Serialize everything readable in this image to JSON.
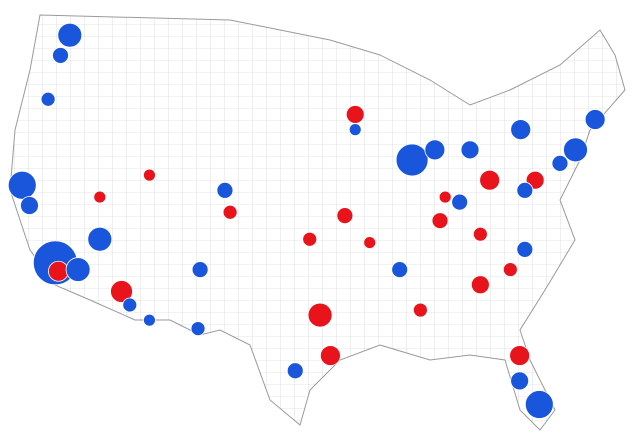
{
  "map": {
    "bubbles": [
      {
        "lon": -119.7,
        "lat": 48.1,
        "size": 12,
        "color": "#1a56db"
      },
      {
        "lon": -120.6,
        "lat": 46.9,
        "size": 8,
        "color": "#1a56db"
      },
      {
        "lon": -121.8,
        "lat": 44.3,
        "size": 7,
        "color": "#1a56db"
      },
      {
        "lon": -124.3,
        "lat": 39.2,
        "size": 14,
        "color": "#1a56db"
      },
      {
        "lon": -123.6,
        "lat": 38.0,
        "size": 9,
        "color": "#1a56db"
      },
      {
        "lon": -121.1,
        "lat": 34.6,
        "size": 22,
        "color": "#1a56db"
      },
      {
        "lon": -120.8,
        "lat": 34.1,
        "size": 10,
        "color": "#e8131b"
      },
      {
        "lon": -116.8,
        "lat": 36.0,
        "size": 12,
        "color": "#1a56db"
      },
      {
        "lon": -114.7,
        "lat": 32.9,
        "size": 11,
        "color": "#e8131b"
      },
      {
        "lon": -118.9,
        "lat": 34.2,
        "size": 12,
        "color": "#1a56db"
      },
      {
        "lon": -113.9,
        "lat": 32.1,
        "size": 7,
        "color": "#1a56db"
      },
      {
        "lon": -107.3,
        "lat": 30.7,
        "size": 7,
        "color": "#1a56db"
      },
      {
        "lon": -104.7,
        "lat": 38.9,
        "size": 8,
        "color": "#1a56db"
      },
      {
        "lon": -104.2,
        "lat": 37.6,
        "size": 7,
        "color": "#e8131b"
      },
      {
        "lon": -107.1,
        "lat": 34.2,
        "size": 8,
        "color": "#1a56db"
      },
      {
        "lon": -112.0,
        "lat": 39.8,
        "size": 6,
        "color": "#e8131b"
      },
      {
        "lon": -92.1,
        "lat": 43.4,
        "size": 9,
        "color": "#e8131b"
      },
      {
        "lon": -92.1,
        "lat": 42.5,
        "size": 6,
        "color": "#1a56db"
      },
      {
        "lon": -86.6,
        "lat": 40.7,
        "size": 16,
        "color": "#1a56db"
      },
      {
        "lon": -84.4,
        "lat": 41.3,
        "size": 10,
        "color": "#1a56db"
      },
      {
        "lon": -81.0,
        "lat": 41.3,
        "size": 9,
        "color": "#1a56db"
      },
      {
        "lon": -76.1,
        "lat": 42.5,
        "size": 10,
        "color": "#1a56db"
      },
      {
        "lon": -70.8,
        "lat": 41.3,
        "size": 12,
        "color": "#1a56db"
      },
      {
        "lon": -68.9,
        "lat": 43.1,
        "size": 10,
        "color": "#1a56db"
      },
      {
        "lon": -74.7,
        "lat": 39.5,
        "size": 9,
        "color": "#e8131b"
      },
      {
        "lon": -75.7,
        "lat": 38.9,
        "size": 8,
        "color": "#1a56db"
      },
      {
        "lon": -75.7,
        "lat": 35.4,
        "size": 8,
        "color": "#1a56db"
      },
      {
        "lon": -77.1,
        "lat": 34.2,
        "size": 7,
        "color": "#e8131b"
      },
      {
        "lon": -80.0,
        "lat": 33.3,
        "size": 9,
        "color": "#e8131b"
      },
      {
        "lon": -83.9,
        "lat": 37.1,
        "size": 8,
        "color": "#e8131b"
      },
      {
        "lon": -87.8,
        "lat": 34.2,
        "size": 8,
        "color": "#1a56db"
      },
      {
        "lon": -95.5,
        "lat": 31.5,
        "size": 12,
        "color": "#e8131b"
      },
      {
        "lon": -94.5,
        "lat": 29.1,
        "size": 10,
        "color": "#e8131b"
      },
      {
        "lon": -97.9,
        "lat": 28.2,
        "size": 8,
        "color": "#1a56db"
      },
      {
        "lon": -76.2,
        "lat": 29.1,
        "size": 10,
        "color": "#e8131b"
      },
      {
        "lon": -74.3,
        "lat": 26.2,
        "size": 14,
        "color": "#1a56db"
      },
      {
        "lon": -76.2,
        "lat": 27.6,
        "size": 9,
        "color": "#1a56db"
      },
      {
        "lon": -93.1,
        "lat": 37.4,
        "size": 8,
        "color": "#e8131b"
      },
      {
        "lon": -96.5,
        "lat": 36.0,
        "size": 7,
        "color": "#e8131b"
      },
      {
        "lon": -82.0,
        "lat": 38.2,
        "size": 8,
        "color": "#1a56db"
      },
      {
        "lon": -79.1,
        "lat": 39.5,
        "size": 10,
        "color": "#e8131b"
      },
      {
        "lon": -72.3,
        "lat": 40.5,
        "size": 8,
        "color": "#1a56db"
      },
      {
        "lon": -83.4,
        "lat": 38.5,
        "size": 6,
        "color": "#e8131b"
      },
      {
        "lon": -90.7,
        "lat": 35.8,
        "size": 6,
        "color": "#e8131b"
      },
      {
        "lon": -80.0,
        "lat": 36.3,
        "size": 7,
        "color": "#e8131b"
      },
      {
        "lon": -85.8,
        "lat": 31.8,
        "size": 7,
        "color": "#e8131b"
      },
      {
        "lon": -112.0,
        "lat": 31.2,
        "size": 6,
        "color": "#1a56db"
      },
      {
        "lon": -116.8,
        "lat": 38.5,
        "size": 6,
        "color": "#e8131b"
      }
    ]
  }
}
